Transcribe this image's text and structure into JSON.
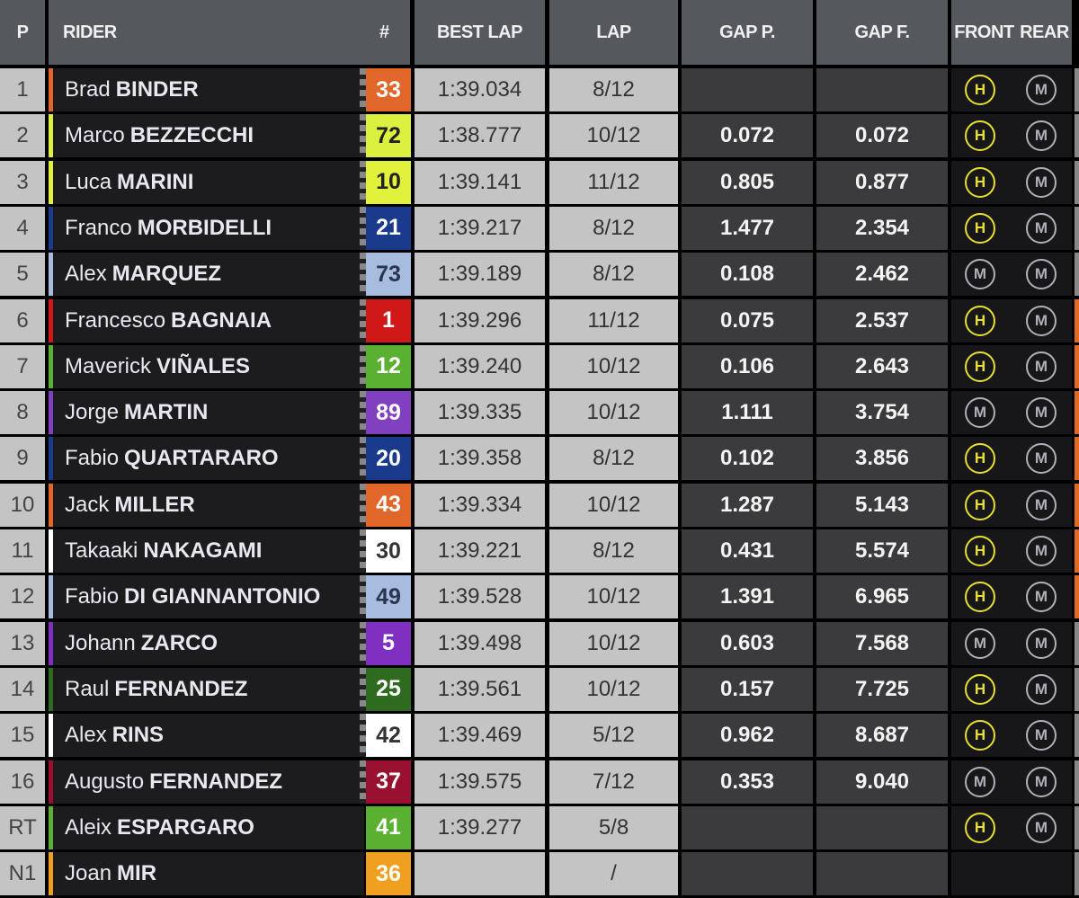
{
  "headers": {
    "p": "P",
    "rider": "RIDER",
    "num": "#",
    "best_lap": "BEST LAP",
    "lap": "LAP",
    "gap_p": "GAP P.",
    "gap_f": "GAP F.",
    "front": "FRONT",
    "rear": "REAR"
  },
  "tyre_colors": {
    "H": "#e8e030",
    "M": "#b0b0b8"
  },
  "rows": [
    {
      "pos": "1",
      "first": "Brad",
      "last": "BINDER",
      "num": "33",
      "color": "#e0662a",
      "text": "#fff",
      "best": "1:39.034",
      "lap": "8/12",
      "gap_p": "",
      "gap_f": "",
      "front": "H",
      "rear": "M",
      "checkered": true,
      "edge": "#888"
    },
    {
      "pos": "2",
      "first": "Marco",
      "last": "BEZZECCHI",
      "num": "72",
      "color": "#dcf040",
      "text": "#222",
      "best": "1:38.777",
      "lap": "10/12",
      "gap_p": "0.072",
      "gap_f": "0.072",
      "front": "H",
      "rear": "M",
      "checkered": true,
      "edge": "#888"
    },
    {
      "pos": "3",
      "first": "Luca",
      "last": "MARINI",
      "num": "10",
      "color": "#e2f23c",
      "text": "#222",
      "best": "1:39.141",
      "lap": "11/12",
      "gap_p": "0.805",
      "gap_f": "0.877",
      "front": "H",
      "rear": "M",
      "checkered": true,
      "edge": "#888"
    },
    {
      "pos": "4",
      "first": "Franco",
      "last": "MORBIDELLI",
      "num": "21",
      "color": "#1a3a8c",
      "text": "#fff",
      "best": "1:39.217",
      "lap": "8/12",
      "gap_p": "1.477",
      "gap_f": "2.354",
      "front": "H",
      "rear": "M",
      "checkered": true,
      "edge": "#888"
    },
    {
      "pos": "5",
      "first": "Alex",
      "last": "MARQUEZ",
      "num": "73",
      "color": "#a8bce0",
      "text": "#2a3550",
      "best": "1:39.189",
      "lap": "8/12",
      "gap_p": "0.108",
      "gap_f": "2.462",
      "front": "M",
      "rear": "M",
      "checkered": true,
      "edge": "#888"
    },
    {
      "pos": "6",
      "first": "Francesco",
      "last": "BAGNAIA",
      "num": "1",
      "color": "#d01818",
      "text": "#fff",
      "best": "1:39.296",
      "lap": "11/12",
      "gap_p": "0.075",
      "gap_f": "2.537",
      "front": "H",
      "rear": "M",
      "checkered": true,
      "edge": "#e06a20"
    },
    {
      "pos": "7",
      "first": "Maverick",
      "last": "VIÑALES",
      "num": "12",
      "color": "#5ab030",
      "text": "#fff",
      "best": "1:39.240",
      "lap": "10/12",
      "gap_p": "0.106",
      "gap_f": "2.643",
      "front": "H",
      "rear": "M",
      "checkered": true,
      "edge": "#e06a20"
    },
    {
      "pos": "8",
      "first": "Jorge",
      "last": "MARTIN",
      "num": "89",
      "color": "#8040c0",
      "text": "#fff",
      "best": "1:39.335",
      "lap": "10/12",
      "gap_p": "1.111",
      "gap_f": "3.754",
      "front": "M",
      "rear": "M",
      "checkered": true,
      "edge": "#e06a20"
    },
    {
      "pos": "9",
      "first": "Fabio",
      "last": "QUARTARARO",
      "num": "20",
      "color": "#1a3a8c",
      "text": "#fff",
      "best": "1:39.358",
      "lap": "8/12",
      "gap_p": "0.102",
      "gap_f": "3.856",
      "front": "H",
      "rear": "M",
      "checkered": true,
      "edge": "#e06a20"
    },
    {
      "pos": "10",
      "first": "Jack",
      "last": "MILLER",
      "num": "43",
      "color": "#e0662a",
      "text": "#fff",
      "best": "1:39.334",
      "lap": "10/12",
      "gap_p": "1.287",
      "gap_f": "5.143",
      "front": "H",
      "rear": "M",
      "checkered": true,
      "edge": "#e06a20"
    },
    {
      "pos": "11",
      "first": "Takaaki",
      "last": "NAKAGAMI",
      "num": "30",
      "color": "#ffffff",
      "text": "#333",
      "best": "1:39.221",
      "lap": "8/12",
      "gap_p": "0.431",
      "gap_f": "5.574",
      "front": "H",
      "rear": "M",
      "checkered": true,
      "edge": "#e06a20"
    },
    {
      "pos": "12",
      "first": "Fabio",
      "last": "DI GIANNANTONIO",
      "num": "49",
      "color": "#a8bce0",
      "text": "#2a3550",
      "best": "1:39.528",
      "lap": "10/12",
      "gap_p": "1.391",
      "gap_f": "6.965",
      "front": "H",
      "rear": "M",
      "checkered": true,
      "edge": "#e06a20"
    },
    {
      "pos": "13",
      "first": "Johann",
      "last": "ZARCO",
      "num": "5",
      "color": "#8030c0",
      "text": "#fff",
      "best": "1:39.498",
      "lap": "10/12",
      "gap_p": "0.603",
      "gap_f": "7.568",
      "front": "M",
      "rear": "M",
      "checkered": true,
      "edge": "#888"
    },
    {
      "pos": "14",
      "first": "Raul",
      "last": "FERNANDEZ",
      "num": "25",
      "color": "#2e6a20",
      "text": "#fff",
      "best": "1:39.561",
      "lap": "10/12",
      "gap_p": "0.157",
      "gap_f": "7.725",
      "front": "H",
      "rear": "M",
      "checkered": true,
      "edge": "#888"
    },
    {
      "pos": "15",
      "first": "Alex",
      "last": "RINS",
      "num": "42",
      "color": "#ffffff",
      "text": "#333",
      "best": "1:39.469",
      "lap": "5/12",
      "gap_p": "0.962",
      "gap_f": "8.687",
      "front": "H",
      "rear": "M",
      "checkered": true,
      "edge": "#888"
    },
    {
      "pos": "16",
      "first": "Augusto",
      "last": "FERNANDEZ",
      "num": "37",
      "color": "#9a1030",
      "text": "#fff",
      "best": "1:39.575",
      "lap": "7/12",
      "gap_p": "0.353",
      "gap_f": "9.040",
      "front": "M",
      "rear": "M",
      "checkered": true,
      "edge": "#888"
    },
    {
      "pos": "RT",
      "first": "Aleix",
      "last": "ESPARGARO",
      "num": "41",
      "color": "#5ab030",
      "text": "#fff",
      "best": "1:39.277",
      "lap": "5/8",
      "gap_p": "",
      "gap_f": "",
      "front": "H",
      "rear": "M",
      "checkered": false,
      "edge": "#888"
    },
    {
      "pos": "N1",
      "first": "Joan",
      "last": "MIR",
      "num": "36",
      "color": "#f0a020",
      "text": "#fff",
      "best": "",
      "lap": "/",
      "gap_p": "",
      "gap_f": "",
      "front": "",
      "rear": "",
      "checkered": false,
      "edge": "#888"
    }
  ]
}
